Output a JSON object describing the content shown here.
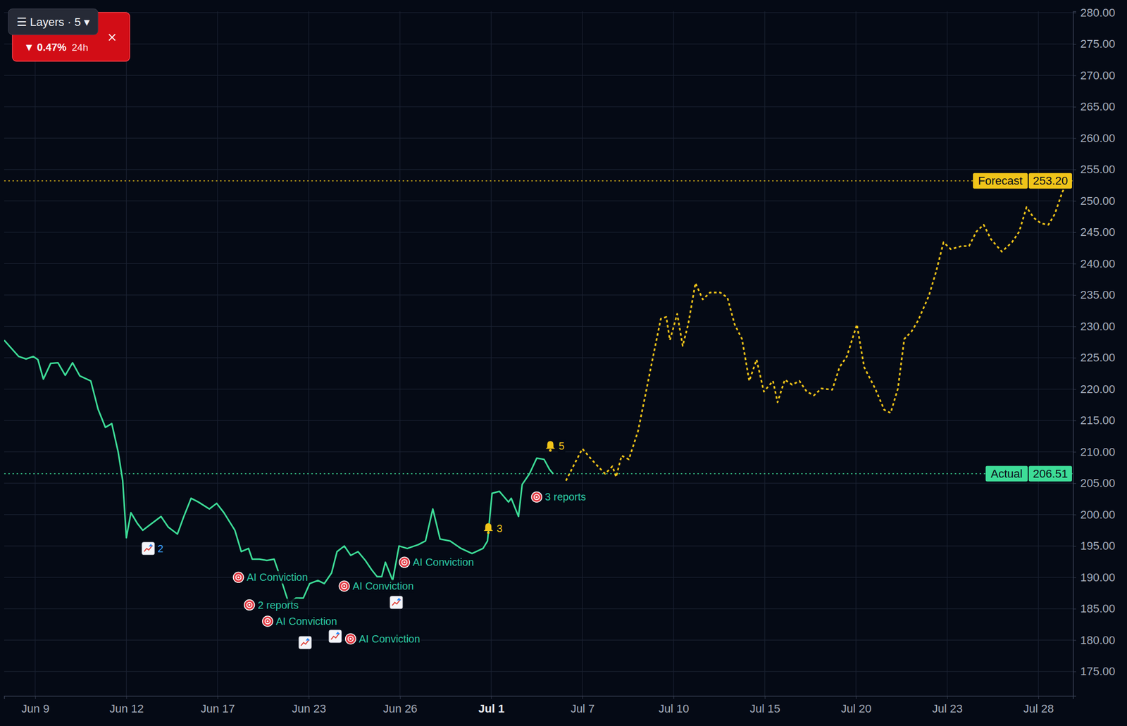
{
  "overlay": {
    "layers_label": "☰ Layers · 5 ▾",
    "change_label": "▼ 0.47%",
    "period_label": "24h"
  },
  "chart_data": {
    "type": "line",
    "grid": true,
    "xlim": [
      -3.4,
      113.8
    ],
    "xticks": [
      {
        "value": 0,
        "label": "Jun 9"
      },
      {
        "value": 10,
        "label": "Jun 12"
      },
      {
        "value": 20,
        "label": "Jun 17"
      },
      {
        "value": 30,
        "label": "Jun 23"
      },
      {
        "value": 40,
        "label": "Jun 26"
      },
      {
        "value": 50,
        "label": "Jul 1"
      },
      {
        "value": 60,
        "label": "Jul 7"
      },
      {
        "value": 70,
        "label": "Jul 10"
      },
      {
        "value": 80,
        "label": "Jul 15"
      },
      {
        "value": 90,
        "label": "Jul 20"
      },
      {
        "value": 100,
        "label": "Jul 23"
      },
      {
        "value": 110,
        "label": "Jul 28"
      }
    ],
    "ylim": [
      171.1,
      280.2
    ],
    "yticks": [
      {
        "value": 175,
        "label": "175.00"
      },
      {
        "value": 180,
        "label": "180.00"
      },
      {
        "value": 185,
        "label": "185.00"
      },
      {
        "value": 190,
        "label": "190.00"
      },
      {
        "value": 195,
        "label": "195.00"
      },
      {
        "value": 200,
        "label": "200.00"
      },
      {
        "value": 205,
        "label": "205.00"
      },
      {
        "value": 210,
        "label": "210.00"
      },
      {
        "value": 215,
        "label": "215.00"
      },
      {
        "value": 220,
        "label": "220.00"
      },
      {
        "value": 225,
        "label": "225.00"
      },
      {
        "value": 230,
        "label": "230.00"
      },
      {
        "value": 235,
        "label": "235.00"
      },
      {
        "value": 240,
        "label": "240.00"
      },
      {
        "value": 245,
        "label": "245.00"
      },
      {
        "value": 250,
        "label": "250.00"
      },
      {
        "value": 255,
        "label": "255.00"
      },
      {
        "value": 260,
        "label": "260.00"
      },
      {
        "value": 265,
        "label": "265.00"
      },
      {
        "value": 270,
        "label": "270.00"
      },
      {
        "value": 275,
        "label": "275.00"
      },
      {
        "value": 280,
        "label": "280.00"
      }
    ],
    "series": [
      {
        "name": "Actual",
        "color": "#3ddc97",
        "line_style": "solid",
        "reference": 206.51,
        "reference_label": "206.51",
        "x": [
          -3.4,
          -2.6,
          -1.8,
          -1.0,
          -0.2,
          0.3,
          0.9,
          1.7,
          2.5,
          3.3,
          4.1,
          4.9,
          6.1,
          6.9,
          7.7,
          8.4,
          9.1,
          9.6,
          10.0,
          10.5,
          11.2,
          11.8,
          12.8,
          13.8,
          14.6,
          15.6,
          16.3,
          17.1,
          17.9,
          19.1,
          19.9,
          20.7,
          21.9,
          22.6,
          23.4,
          23.8,
          24.6,
          25.4,
          26.2,
          27.0,
          27.8,
          28.6,
          29.4,
          30.1,
          31.0,
          31.7,
          32.5,
          33.1,
          33.9,
          34.6,
          35.4,
          36.2,
          36.9,
          37.5,
          38.0,
          38.4,
          39.2,
          39.9,
          40.8,
          42.0,
          42.8,
          43.6,
          44.4,
          45.5,
          46.7,
          47.9,
          49.1,
          49.6,
          50.1,
          50.9,
          51.9,
          52.2,
          53.0,
          53.4,
          54.2,
          55.0,
          55.8,
          56.4,
          56.8
        ],
        "values": [
          227.8,
          226.5,
          225.2,
          224.8,
          225.2,
          224.7,
          221.6,
          224.1,
          224.2,
          222.2,
          224.2,
          222.1,
          221.3,
          216.8,
          213.9,
          214.5,
          210.0,
          205.4,
          196.3,
          200.3,
          198.6,
          197.5,
          198.6,
          199.7,
          198.0,
          196.9,
          199.7,
          202.6,
          202.0,
          200.9,
          201.8,
          200.3,
          197.5,
          194.1,
          194.6,
          192.9,
          192.9,
          192.7,
          192.9,
          189.5,
          185.9,
          186.7,
          186.7,
          189.0,
          189.5,
          189.0,
          190.7,
          194.1,
          195.0,
          193.5,
          194.1,
          192.7,
          191.2,
          190.1,
          190.1,
          192.4,
          189.5,
          195.0,
          194.6,
          195.2,
          195.8,
          200.9,
          196.1,
          195.8,
          194.6,
          193.8,
          194.6,
          195.8,
          203.4,
          203.7,
          202.0,
          202.6,
          199.7,
          204.8,
          206.5,
          209.0,
          208.8,
          207.2,
          206.5
        ]
      },
      {
        "name": "Forecast",
        "color": "#f0c419",
        "line_style": "dotted",
        "reference": 253.2,
        "reference_label": "253.20",
        "x": [
          58.2,
          59.0,
          60.0,
          61.0,
          61.7,
          62.5,
          63.3,
          63.7,
          64.3,
          65.1,
          66.1,
          66.9,
          67.6,
          68.6,
          69.2,
          69.6,
          70.4,
          71.0,
          71.6,
          72.4,
          73.2,
          74.0,
          75.1,
          75.9,
          76.7,
          77.5,
          78.3,
          79.1,
          79.9,
          80.9,
          81.4,
          82.2,
          83.0,
          83.8,
          84.6,
          85.4,
          86.2,
          87.4,
          88.2,
          89.0,
          90.1,
          90.9,
          92.1,
          93.1,
          93.8,
          94.6,
          95.3,
          96.1,
          96.8,
          98.0,
          98.8,
          99.6,
          100.4,
          101.6,
          102.4,
          103.2,
          104.0,
          104.8,
          106.0,
          107.1,
          107.9,
          108.7,
          109.5,
          110.3,
          111.1,
          111.8,
          112.6,
          113.2
        ],
        "values": [
          205.4,
          207.7,
          210.5,
          208.8,
          207.7,
          206.5,
          207.7,
          206.0,
          209.4,
          208.8,
          213.3,
          219.0,
          224.1,
          231.2,
          231.5,
          227.8,
          232.0,
          226.9,
          230.3,
          236.9,
          234.3,
          235.4,
          235.4,
          234.6,
          230.3,
          228.0,
          221.3,
          224.7,
          219.6,
          221.3,
          217.9,
          221.5,
          220.7,
          221.3,
          219.6,
          219.0,
          220.1,
          219.9,
          223.5,
          225.2,
          230.3,
          223.5,
          220.1,
          216.7,
          216.2,
          220.1,
          228.0,
          229.2,
          230.9,
          234.9,
          238.8,
          243.4,
          242.3,
          242.8,
          242.8,
          245.1,
          246.2,
          243.9,
          241.9,
          243.4,
          245.1,
          249.0,
          247.3,
          246.4,
          246.2,
          247.9,
          251.3,
          253.2
        ]
      }
    ],
    "annotations": [
      {
        "text": "AI Conviction",
        "x": 23.2,
        "y": 190.0,
        "marker": "target"
      },
      {
        "text": "2 reports",
        "x": 24.4,
        "y": 185.6,
        "marker": "target"
      },
      {
        "text": "AI Conviction",
        "x": 26.4,
        "y": 183.0,
        "marker": "target"
      },
      {
        "text": "AI Conviction",
        "x": 35.5,
        "y": 180.2,
        "marker": "target"
      },
      {
        "text": "AI Conviction",
        "x": 34.8,
        "y": 188.6,
        "marker": "target"
      },
      {
        "text": "AI Conviction",
        "x": 41.4,
        "y": 192.4,
        "marker": "target"
      },
      {
        "text": "3 reports",
        "x": 55.9,
        "y": 202.8,
        "marker": "target"
      },
      {
        "text": "3",
        "x": 50.6,
        "y": 197.8,
        "marker": "bell"
      },
      {
        "text": "5",
        "x": 57.4,
        "y": 210.9,
        "marker": "bell"
      }
    ],
    "signals": [
      {
        "x": 12.4,
        "y": 194.6,
        "label": "2"
      },
      {
        "x": 29.6,
        "y": 179.6
      },
      {
        "x": 32.9,
        "y": 180.6
      },
      {
        "x": 39.6,
        "y": 186.0
      }
    ]
  }
}
